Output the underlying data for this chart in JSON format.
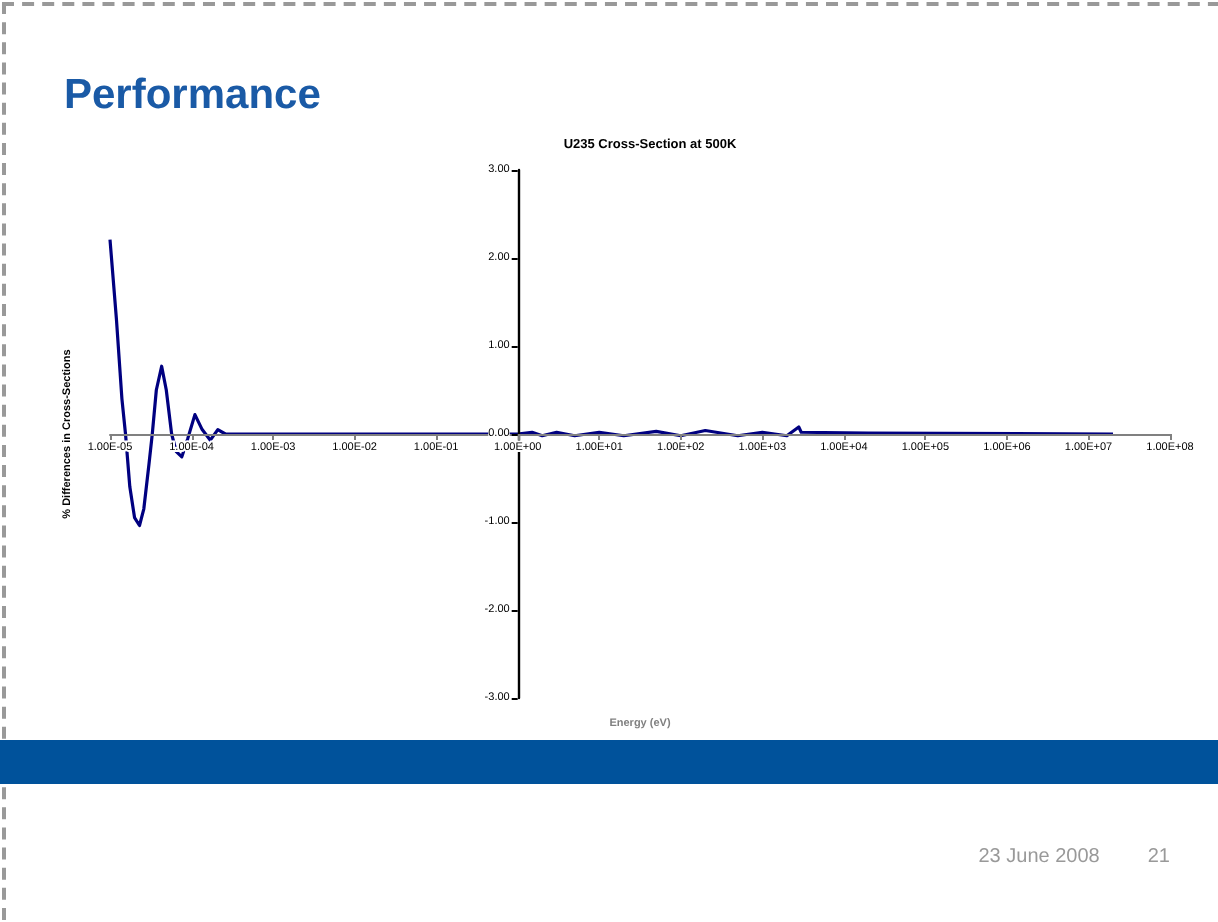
{
  "chart_data": {
    "type": "line",
    "title": "Performance",
    "subtitle": "U235 Cross-Section at 500K",
    "xlabel": "Energy (eV)",
    "ylabel": "% Differences in Cross-Sections",
    "log": "x",
    "grid": false,
    "marker": "none",
    "line_style": "solid",
    "xlim": [
      1e-05,
      100000000.0
    ],
    "xticks": [
      {
        "value": 1e-05,
        "label": "1.00E-05"
      },
      {
        "value": 0.0001,
        "label": "1.00E-04"
      },
      {
        "value": 0.001,
        "label": "1.00E-03"
      },
      {
        "value": 0.01,
        "label": "1.00E-02"
      },
      {
        "value": 0.1,
        "label": "1.00E-01"
      },
      {
        "value": 1,
        "label": "1.00E+00"
      },
      {
        "value": 10,
        "label": "1.00E+01"
      },
      {
        "value": 100,
        "label": "1.00E+02"
      },
      {
        "value": 1000,
        "label": "1.00E+03"
      },
      {
        "value": 10000,
        "label": "1.00E+04"
      },
      {
        "value": 100000,
        "label": "1.00E+05"
      },
      {
        "value": 1000000,
        "label": "1.00E+06"
      },
      {
        "value": 10000000,
        "label": "1.00E+07"
      },
      {
        "value": 100000000,
        "label": "1.00E+08"
      }
    ],
    "ylim": [
      -3,
      3
    ],
    "yticks": [
      {
        "value": -3,
        "label": "-3.00"
      },
      {
        "value": -2,
        "label": "-2.00"
      },
      {
        "value": -1,
        "label": "-1.00"
      },
      {
        "value": 0,
        "label": "0.00"
      },
      {
        "value": 1,
        "label": "1.00"
      },
      {
        "value": 2,
        "label": "2.00"
      },
      {
        "value": 3,
        "label": "3.00"
      }
    ],
    "series": [
      {
        "color": "#000080",
        "x": [
          1e-05,
          1.2e-05,
          1.4e-05,
          1.55e-05,
          1.75e-05,
          2e-05,
          2.3e-05,
          2.6e-05,
          3e-05,
          3.3e-05,
          3.7e-05,
          4.3e-05,
          4.9e-05,
          5.7e-05,
          6.5e-05,
          7.6e-05,
          9e-05,
          0.00011,
          0.000135,
          0.00017,
          0.00021,
          0.00026,
          1,
          1.5,
          2,
          3,
          5,
          10,
          20,
          50,
          100,
          200,
          500,
          1000,
          2000,
          2800,
          3000,
          20000,
          20000000
        ],
        "values": [
          2.21,
          1.3,
          0.4,
          0,
          -0.6,
          -0.95,
          -1.04,
          -0.85,
          -0.35,
          0,
          0.5,
          0.77,
          0.5,
          0,
          -0.2,
          -0.26,
          -0.05,
          0.22,
          0.05,
          -0.07,
          0.05,
          0,
          0,
          0.02,
          -0.02,
          0.02,
          -0.02,
          0.02,
          -0.02,
          0.03,
          -0.02,
          0.04,
          -0.02,
          0.02,
          -0.02,
          0.08,
          0.02,
          0.01,
          0
        ]
      }
    ],
    "annotations": [
      "23 June 2008",
      "21"
    ]
  }
}
